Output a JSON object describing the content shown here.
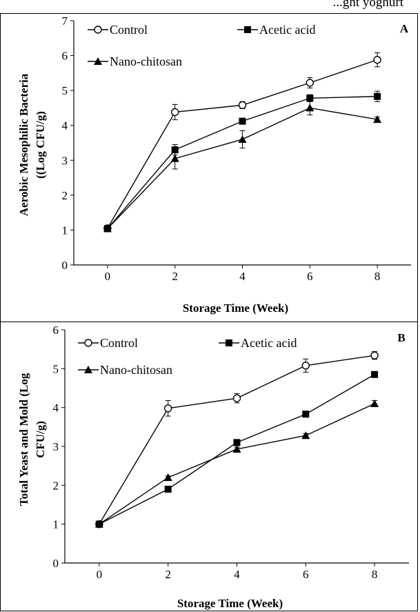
{
  "top_caption": "...ght yoghurt",
  "chart_data": [
    {
      "type": "line",
      "panel_label": "A",
      "title": "",
      "xlabel": "Storage Time (Week)",
      "ylabel_line1": "Aerobic Mesophilic Bacteria",
      "ylabel_line2": "((Log CFU/g)",
      "x": [
        0,
        2,
        4,
        6,
        8
      ],
      "xlim": [
        -1,
        9
      ],
      "ylim": [
        0,
        7
      ],
      "yticks": [
        0,
        1,
        2,
        3,
        4,
        5,
        6,
        7
      ],
      "xticks": [
        0,
        2,
        4,
        6,
        8
      ],
      "grid": false,
      "legend_placement": "top",
      "series": [
        {
          "name": "Control",
          "marker": "open-circle",
          "values": [
            1.05,
            4.38,
            4.58,
            5.22,
            5.88
          ],
          "errors": [
            0.08,
            0.22,
            0.1,
            0.15,
            0.2
          ]
        },
        {
          "name": "Acetic acid",
          "marker": "filled-square",
          "values": [
            1.04,
            3.3,
            4.12,
            4.78,
            4.83
          ],
          "errors": [
            0.06,
            0.15,
            0.08,
            0.1,
            0.15
          ]
        },
        {
          "name": "Nano-chitosan",
          "marker": "filled-triangle",
          "values": [
            1.04,
            3.05,
            3.6,
            4.5,
            4.17
          ],
          "errors": [
            0.06,
            0.3,
            0.25,
            0.2,
            0.07
          ]
        }
      ]
    },
    {
      "type": "line",
      "panel_label": "B",
      "title": "",
      "xlabel": "Storage Time (Week)",
      "ylabel_line1": "Total Yeast and Mold (Log",
      "ylabel_line2": "CFU/g)",
      "x": [
        0,
        2,
        4,
        6,
        8
      ],
      "xlim": [
        -1,
        9
      ],
      "ylim": [
        0,
        6
      ],
      "yticks": [
        0,
        1,
        2,
        3,
        4,
        5,
        6
      ],
      "xticks": [
        0,
        2,
        4,
        6,
        8
      ],
      "grid": false,
      "legend_placement": "top",
      "series": [
        {
          "name": "Control",
          "marker": "open-circle",
          "values": [
            1.0,
            3.98,
            4.24,
            5.08,
            5.34
          ],
          "errors": [
            0.05,
            0.2,
            0.12,
            0.17,
            0.1
          ]
        },
        {
          "name": "Acetic acid",
          "marker": "filled-square",
          "values": [
            1.0,
            1.9,
            3.1,
            3.83,
            4.85
          ],
          "errors": [
            0.04,
            0.04,
            0.06,
            0.05,
            0.05
          ]
        },
        {
          "name": "Nano-chitosan",
          "marker": "filled-triangle",
          "values": [
            1.0,
            2.2,
            2.93,
            3.28,
            4.1
          ],
          "errors": [
            0.04,
            0.04,
            0.05,
            0.05,
            0.08
          ]
        }
      ]
    }
  ]
}
